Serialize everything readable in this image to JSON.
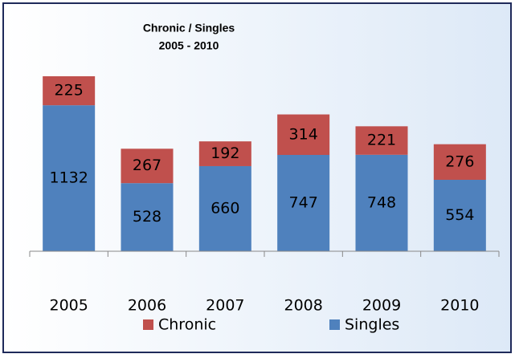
{
  "chart_data": {
    "type": "stacked_bar",
    "title": "Chronic / Singles",
    "subtitle": "2005 - 2010",
    "categories": [
      "2005",
      "2006",
      "2007",
      "2008",
      "2009",
      "2010"
    ],
    "series": [
      {
        "name": "Singles",
        "color": "#4f81bd",
        "values": [
          1132,
          528,
          660,
          747,
          748,
          554
        ]
      },
      {
        "name": "Chronic",
        "color": "#c0504d",
        "values": [
          225,
          267,
          192,
          314,
          221,
          276
        ]
      }
    ]
  }
}
